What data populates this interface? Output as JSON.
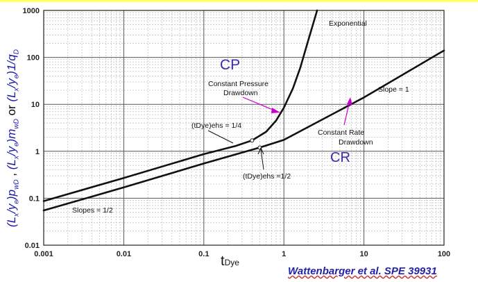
{
  "chart_data": {
    "type": "line",
    "x_axis": {
      "label_main": "t",
      "label_sub": "Dye",
      "scale": "log",
      "range": [
        0.001,
        100
      ],
      "ticks": [
        "0.001",
        "0.01",
        "0.1",
        "1",
        "10",
        "100"
      ]
    },
    "y_axis": {
      "label": "(Lx/ye)pwD , (Lx/ye)mwD or (Lx/ye)1/qD",
      "scale": "log",
      "range": [
        0.01,
        1000
      ],
      "ticks": [
        "0.01",
        "0.1",
        "1",
        "10",
        "100",
        "1000"
      ]
    },
    "grid": true,
    "series": [
      {
        "x": [
          0.001,
          0.01,
          0.1,
          0.25,
          0.4,
          0.6,
          0.8,
          1.0,
          1.3,
          1.6,
          2.0,
          2.6
        ],
        "y": [
          0.087,
          0.27,
          0.87,
          1.3,
          1.7,
          2.6,
          4.5,
          8.5,
          22,
          60,
          220,
          1000
        ]
      },
      {
        "x": [
          0.001,
          0.01,
          0.1,
          0.5,
          1,
          10,
          100
        ],
        "y": [
          0.055,
          0.17,
          0.55,
          1.2,
          1.75,
          14,
          140
        ]
      }
    ],
    "annotations": {
      "exponential": "Exponential",
      "cp_drawdown_1": "Constant Pressure",
      "cp_drawdown_2": "Drawdown",
      "cr_drawdown_1": "Constant Rate",
      "cr_drawdown_2": "Drawdown",
      "slope_1": "Slope = 1",
      "slopes_half": "Slopes = 1/2",
      "tdye_quarter": "(tDye)ehs = 1/4",
      "tdye_half": "(tDye)ehs =1/2",
      "cp": "CP",
      "cr": "CR"
    },
    "citation": "Wattenbarger et al. SPE 39931"
  }
}
